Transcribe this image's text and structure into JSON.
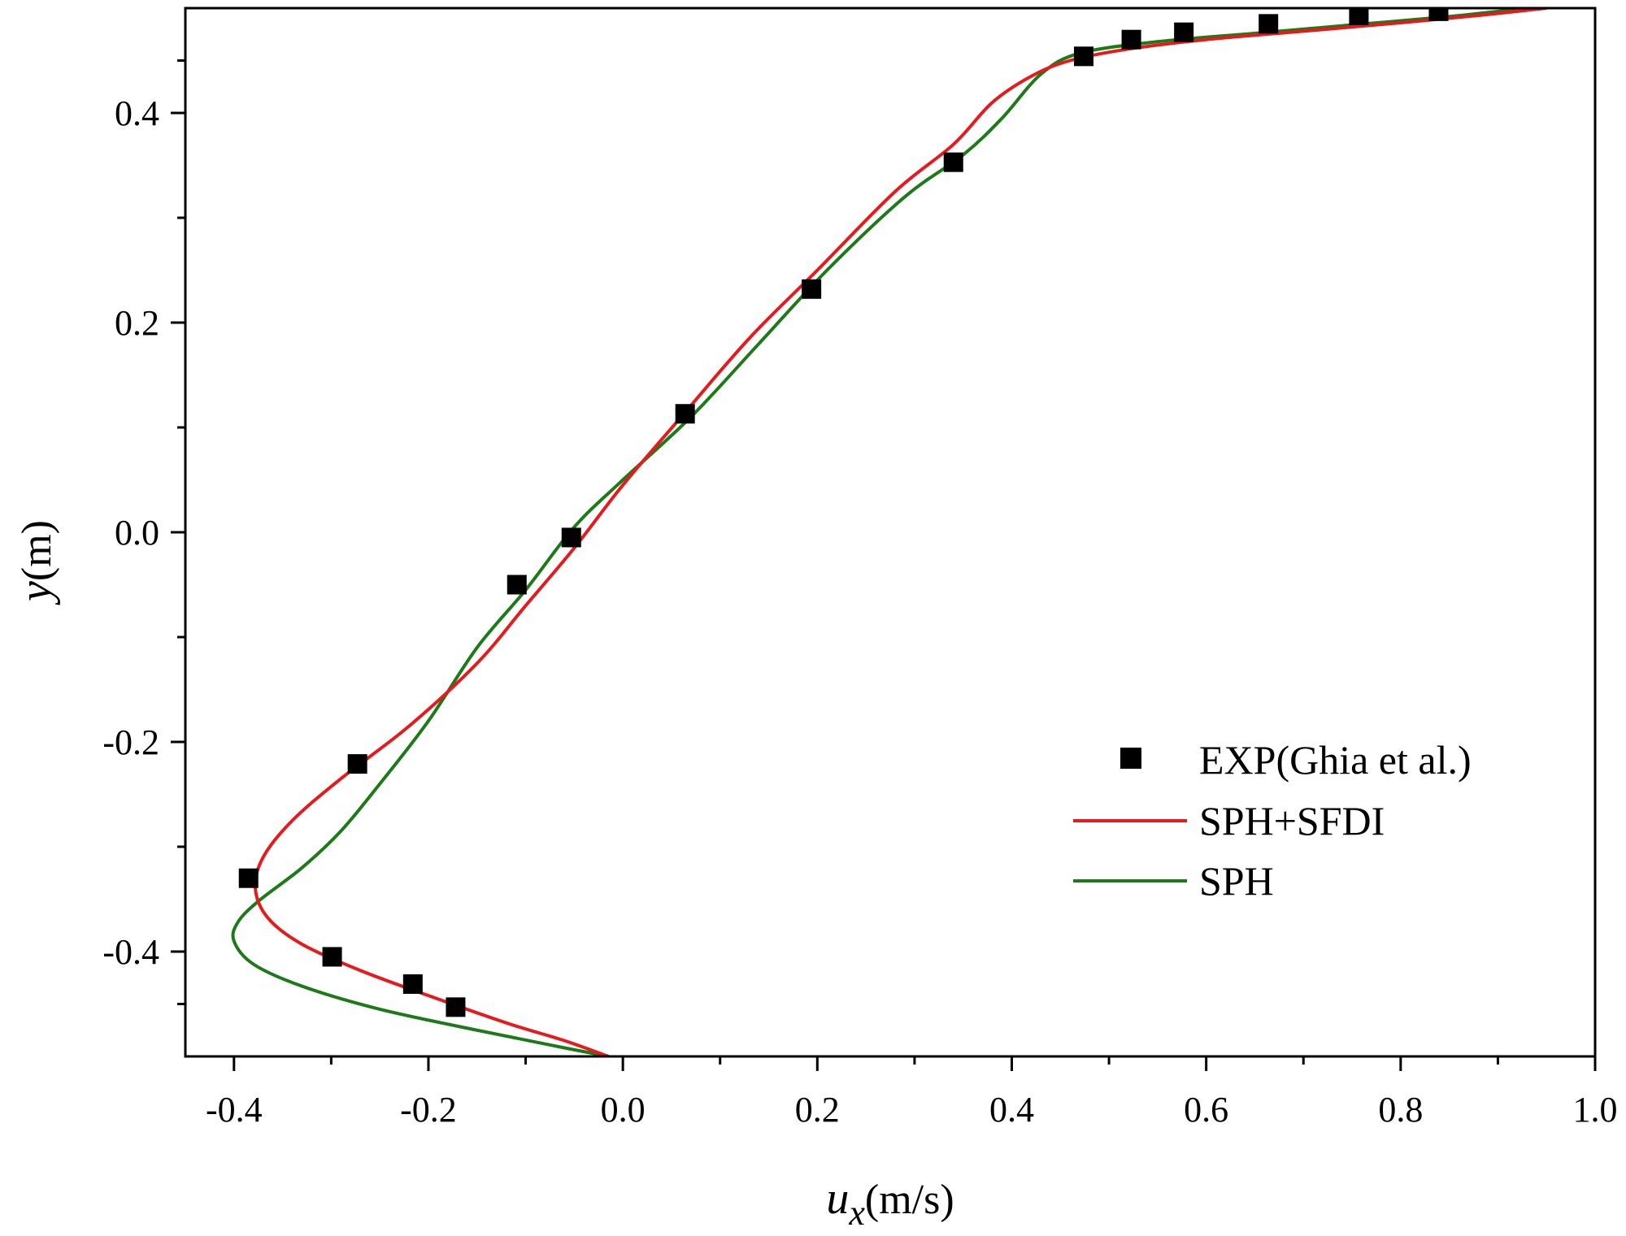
{
  "chart_data": {
    "type": "line",
    "title": "",
    "xlabel": {
      "symbol": "u",
      "subscript": "x",
      "unit": "(m/s)"
    },
    "ylabel": {
      "symbol": "y",
      "unit": "(m)"
    },
    "xlim": [
      -0.45,
      1.0
    ],
    "ylim": [
      -0.5,
      0.5
    ],
    "x_ticks": [
      -0.4,
      -0.2,
      0.0,
      0.2,
      0.4,
      0.6,
      0.8,
      1.0
    ],
    "x_tick_labels": [
      "-0.4",
      "-0.2",
      "0.0",
      "0.2",
      "0.4",
      "0.6",
      "0.8",
      "1.0"
    ],
    "y_ticks": [
      -0.4,
      -0.2,
      0.0,
      0.2,
      0.4
    ],
    "y_tick_labels": [
      "-0.4",
      "-0.2",
      "0.0",
      "0.2",
      "0.4"
    ],
    "grid": false,
    "legend_position": "lower-right",
    "series": [
      {
        "name": "EXP(Ghia et al.)",
        "kind": "scatter",
        "marker": "square",
        "color": "#000000",
        "points": [
          [
            -0.172,
            -0.453
          ],
          [
            -0.216,
            -0.431
          ],
          [
            -0.299,
            -0.405
          ],
          [
            -0.385,
            -0.33
          ],
          [
            -0.273,
            -0.221
          ],
          [
            -0.109,
            -0.05
          ],
          [
            -0.053,
            -0.005
          ],
          [
            0.064,
            0.113
          ],
          [
            0.194,
            0.232
          ],
          [
            0.34,
            0.353
          ],
          [
            0.474,
            0.454
          ],
          [
            0.523,
            0.47
          ],
          [
            0.577,
            0.477
          ],
          [
            0.664,
            0.485
          ],
          [
            0.757,
            0.493
          ],
          [
            0.839,
            0.497
          ]
        ]
      },
      {
        "name": "SPH+SFDI",
        "kind": "line",
        "color": "#e8191c",
        "points": [
          [
            -0.015,
            -0.5
          ],
          [
            -0.06,
            -0.485
          ],
          [
            -0.12,
            -0.468
          ],
          [
            -0.2,
            -0.442
          ],
          [
            -0.27,
            -0.418
          ],
          [
            -0.33,
            -0.393
          ],
          [
            -0.365,
            -0.368
          ],
          [
            -0.378,
            -0.34
          ],
          [
            -0.37,
            -0.31
          ],
          [
            -0.34,
            -0.275
          ],
          [
            -0.29,
            -0.235
          ],
          [
            -0.22,
            -0.185
          ],
          [
            -0.15,
            -0.125
          ],
          [
            -0.1,
            -0.07
          ],
          [
            -0.05,
            -0.015
          ],
          [
            0.0,
            0.045
          ],
          [
            0.06,
            0.11
          ],
          [
            0.13,
            0.185
          ],
          [
            0.2,
            0.25
          ],
          [
            0.28,
            0.325
          ],
          [
            0.34,
            0.37
          ],
          [
            0.38,
            0.41
          ],
          [
            0.42,
            0.435
          ],
          [
            0.46,
            0.45
          ],
          [
            0.52,
            0.461
          ],
          [
            0.6,
            0.47
          ],
          [
            0.7,
            0.478
          ],
          [
            0.8,
            0.486
          ],
          [
            0.88,
            0.493
          ],
          [
            0.95,
            0.5
          ]
        ]
      },
      {
        "name": "SPH",
        "kind": "line",
        "color": "#1d7a18",
        "points": [
          [
            -0.015,
            -0.5
          ],
          [
            -0.07,
            -0.49
          ],
          [
            -0.15,
            -0.475
          ],
          [
            -0.25,
            -0.455
          ],
          [
            -0.33,
            -0.433
          ],
          [
            -0.38,
            -0.412
          ],
          [
            -0.4,
            -0.39
          ],
          [
            -0.396,
            -0.372
          ],
          [
            -0.375,
            -0.352
          ],
          [
            -0.33,
            -0.32
          ],
          [
            -0.29,
            -0.285
          ],
          [
            -0.25,
            -0.24
          ],
          [
            -0.2,
            -0.18
          ],
          [
            -0.15,
            -0.11
          ],
          [
            -0.1,
            -0.055
          ],
          [
            -0.05,
            0.005
          ],
          [
            0.0,
            0.05
          ],
          [
            0.07,
            0.11
          ],
          [
            0.14,
            0.18
          ],
          [
            0.21,
            0.25
          ],
          [
            0.29,
            0.32
          ],
          [
            0.35,
            0.36
          ],
          [
            0.39,
            0.395
          ],
          [
            0.43,
            0.437
          ],
          [
            0.47,
            0.457
          ],
          [
            0.55,
            0.468
          ],
          [
            0.65,
            0.476
          ],
          [
            0.75,
            0.484
          ],
          [
            0.85,
            0.492
          ],
          [
            0.93,
            0.5
          ]
        ]
      }
    ]
  }
}
